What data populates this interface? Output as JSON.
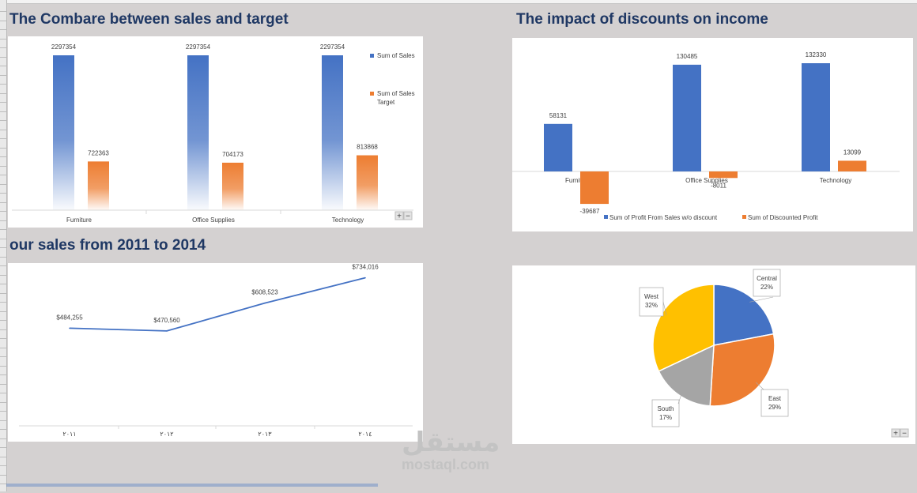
{
  "panels": {
    "sales_target": {
      "title": "The Combare between sales and target",
      "zoom_controls": [
        "+",
        "−"
      ]
    },
    "discount": {
      "title": "The impact of discounts on income"
    },
    "yearly": {
      "title": "our sales from 2011 to 2014"
    },
    "region": {
      "zoom_controls": [
        "+",
        "−"
      ]
    }
  },
  "watermark": {
    "arabic": "مستقل",
    "latin": "mostaql.com"
  },
  "chart_data": [
    {
      "id": "sales_target",
      "type": "bar",
      "categories": [
        "Furniture",
        "Office Supplies",
        "Technology"
      ],
      "series": [
        {
          "name": "Sum of Sales",
          "values": [
            2297354,
            2297354,
            2297354
          ],
          "color": "#4472c4"
        },
        {
          "name": "Sum of Sales Target",
          "values": [
            722363,
            704173,
            813868
          ],
          "color": "#ed7d31"
        }
      ],
      "legend": "right",
      "ylim": [
        0,
        2297354
      ]
    },
    {
      "id": "discount",
      "type": "bar",
      "categories": [
        "Furniture",
        "Office Supplies",
        "Technology"
      ],
      "series": [
        {
          "name": "Sum of Profit  From Sales w/o discount",
          "values": [
            58131,
            130485,
            132330
          ],
          "color": "#4472c4"
        },
        {
          "name": "Sum of Discounted Profit",
          "values": [
            -39687,
            -8011,
            13099
          ],
          "color": "#ed7d31"
        }
      ],
      "legend": "bottom",
      "ylim": [
        -45000,
        150000
      ]
    },
    {
      "id": "yearly",
      "type": "line",
      "x": [
        "٢٠١١",
        "٢٠١٢",
        "٢٠١٣",
        "٢٠١٤"
      ],
      "series": [
        {
          "values": [
            484255,
            470560,
            608523,
            734016
          ],
          "labels": [
            "$484,255",
            "$470,560",
            "$608,523",
            "$734,016"
          ],
          "color": "#4472c4"
        }
      ],
      "ylim": [
        0,
        760000
      ]
    },
    {
      "id": "region",
      "type": "pie",
      "slices": [
        {
          "label": "Central",
          "value": 22,
          "pct": "22%",
          "color": "#4472c4"
        },
        {
          "label": "East",
          "value": 29,
          "pct": "29%",
          "color": "#ed7d31"
        },
        {
          "label": "South",
          "value": 17,
          "pct": "17%",
          "color": "#a5a5a5"
        },
        {
          "label": "West",
          "value": 32,
          "pct": "32%",
          "color": "#ffc000"
        }
      ]
    }
  ]
}
